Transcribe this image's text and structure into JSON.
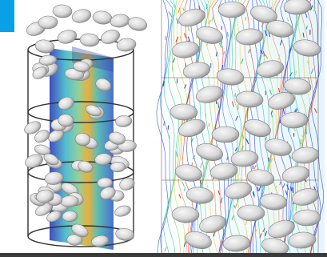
{
  "figure": {
    "panels": [
      {
        "id": "left",
        "kind": "cylindrical-domain-with-slice"
      },
      {
        "id": "right",
        "kind": "contour-flow-field"
      }
    ],
    "colors": {
      "background": "#ffffff",
      "accent_bar": "#0aa0e8",
      "particle_fill": "#e4e4e4",
      "particle_shadow": "#8a8a8a",
      "slice_low": "#1f2fb5",
      "slice_mid": "#33b38a",
      "slice_high": "#e6a21a",
      "outline": "#333333"
    }
  }
}
